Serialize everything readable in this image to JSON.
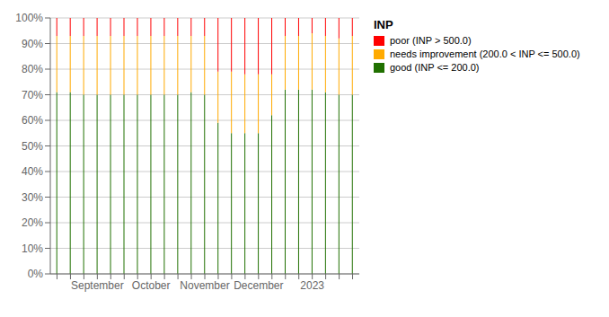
{
  "chart_data": {
    "type": "bar",
    "title": "INP",
    "stacked": true,
    "grid": true,
    "legend": "right",
    "categories": [
      null,
      null,
      null,
      "September",
      null,
      null,
      null,
      "October",
      null,
      null,
      null,
      "November",
      null,
      null,
      null,
      "December",
      null,
      null,
      null,
      "2023",
      null,
      null,
      null
    ],
    "series": [
      {
        "name": "good (INP <= 200.0)",
        "color": "#207000",
        "values": [
          71,
          71,
          70,
          70,
          70,
          70,
          70,
          70,
          70,
          70,
          71,
          70,
          59,
          55,
          55,
          55,
          62,
          72,
          72,
          72,
          71,
          70,
          70
        ]
      },
      {
        "name": "needs improvement (200.0 < INP <= 500.0)",
        "color": "#ffaa00",
        "values": [
          22,
          22,
          23,
          23,
          23,
          23,
          23,
          23,
          23,
          23,
          22,
          23,
          20,
          24,
          23,
          23,
          16,
          21,
          21,
          22,
          22,
          22,
          23
        ]
      },
      {
        "name": "poor (INP > 500.0)",
        "color": "#ff0000",
        "values": [
          7,
          7,
          7,
          7,
          7,
          7,
          7,
          7,
          7,
          7,
          7,
          7,
          21,
          21,
          22,
          22,
          22,
          7,
          7,
          6,
          7,
          8,
          7
        ]
      }
    ],
    "ylim": [
      0,
      100
    ],
    "yticks": [
      {
        "value": 0,
        "label": "0%"
      },
      {
        "value": 10,
        "label": "10%"
      },
      {
        "value": 20,
        "label": "20%"
      },
      {
        "value": 30,
        "label": "30%"
      },
      {
        "value": 40,
        "label": "40%"
      },
      {
        "value": 50,
        "label": "50%"
      },
      {
        "value": 60,
        "label": "60%"
      },
      {
        "value": 70,
        "label": "70%"
      },
      {
        "value": 80,
        "label": "80%"
      },
      {
        "value": 90,
        "label": "90%"
      },
      {
        "value": 100,
        "label": "100%"
      }
    ]
  }
}
